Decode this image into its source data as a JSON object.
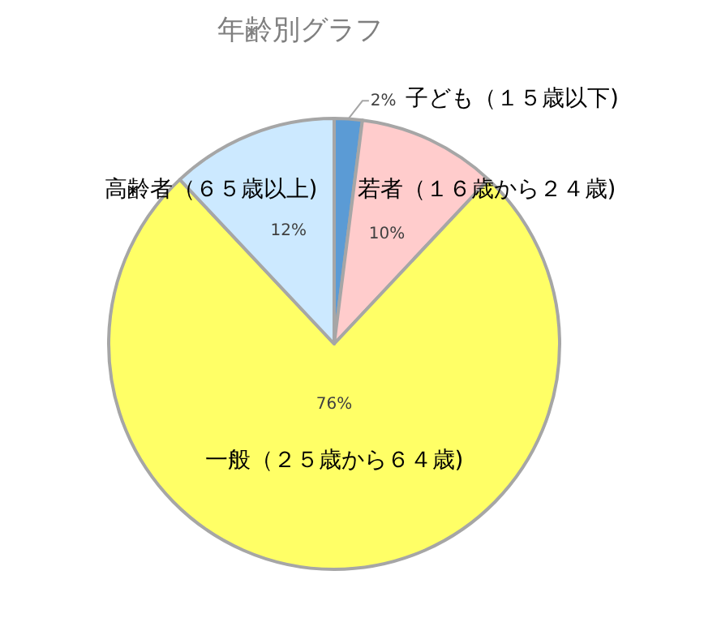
{
  "chart_data": {
    "type": "pie",
    "title": "年齢別グラフ",
    "categories": [
      "子ども（１５歳以下)",
      "若者（１６歳から２４歳)",
      "一般（２５歳から６４歳)",
      "高齢者（６５歳以上)"
    ],
    "values": [
      2,
      10,
      76,
      12
    ],
    "colors": [
      "#5b9bd5",
      "#ffcccc",
      "#ffff66",
      "#cce9ff"
    ],
    "value_labels": [
      "2%",
      "10%",
      "76%",
      "12%"
    ]
  }
}
